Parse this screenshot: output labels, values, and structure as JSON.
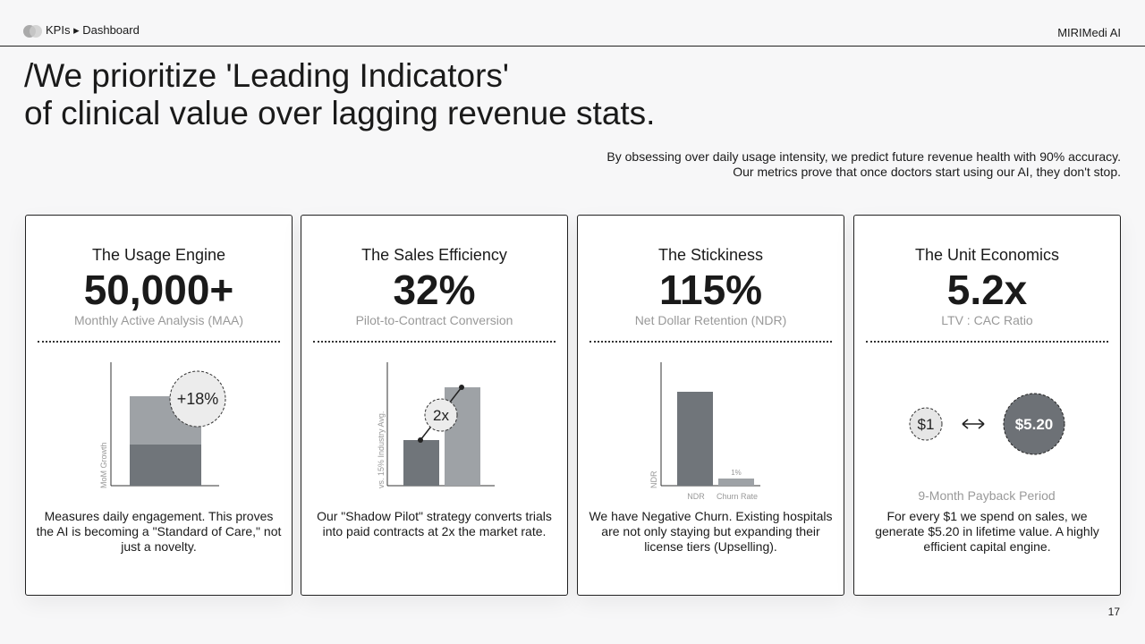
{
  "header": {
    "breadcrumb": [
      "KPIs",
      "Dashboard"
    ],
    "brand": "MIRIMedi AI"
  },
  "title": {
    "line1": "/We prioritize 'Leading Indicators'",
    "line2": "of clinical value over lagging revenue stats."
  },
  "subtitle": {
    "line1": "By obsessing over daily usage intensity, we predict future revenue health with 90% accuracy.",
    "line2": "Our metrics prove that once doctors start using our AI, they don't stop."
  },
  "cards": [
    {
      "title": "The Usage Engine",
      "value": "50,000+",
      "label": "Monthly Active Analysis (MAA)",
      "description": "Measures daily engagement. This proves the AI is becoming a \"Standard of Care,\" not just a novelty.",
      "chart": {
        "badge": "+18%",
        "axis_label": "MoM Growth"
      }
    },
    {
      "title": "The Sales Efficiency",
      "value": "32%",
      "label": "Pilot-to-Contract Conversion",
      "description": "Our \"Shadow Pilot\" strategy converts trials into paid contracts at 2x the market rate.",
      "chart": {
        "badge": "2x",
        "axis_label": "vs. 15% Industry Avg."
      }
    },
    {
      "title": "The Stickiness",
      "value": "115%",
      "label": "Net Dollar Retention (NDR)",
      "description": "We have Negative Churn. Existing hospitals are not only staying but expanding their license tiers (Upselling).",
      "chart": {
        "axis_label": "NDR",
        "bar_labels": [
          "NDR",
          "Churn Rate"
        ],
        "churn_label": "1%"
      }
    },
    {
      "title": "The Unit Economics",
      "value": "5.2x",
      "label": "LTV : CAC Ratio",
      "description": "For every $1 we spend on sales, we generate $5.20 in lifetime value. A highly efficient capital engine.",
      "chart": {
        "left": "$1",
        "right": "$5.20",
        "caption": "9-Month Payback Period"
      }
    }
  ],
  "page_number": "17"
}
